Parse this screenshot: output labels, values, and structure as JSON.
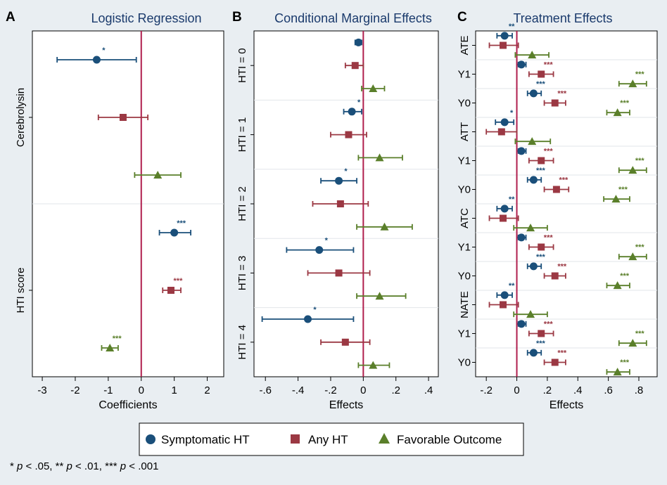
{
  "colors": {
    "symptomatic": "#1a4f7a",
    "any_ht": "#9b3843",
    "favorable": "#5a7f2a",
    "reference_line": "#b01e4d",
    "title": "#1a3a6c"
  },
  "legend": {
    "items": [
      {
        "label": "Symptomatic HT",
        "marker": "circle",
        "color": "#1a4f7a"
      },
      {
        "label": "Any HT",
        "marker": "square",
        "color": "#9b3843"
      },
      {
        "label": "Favorable Outcome",
        "marker": "triangle",
        "color": "#5a7f2a"
      }
    ]
  },
  "footnote": {
    "part1": "* ",
    "p1": "p",
    "part2": " < .05, ** ",
    "p2": "p",
    "part3": " < .01, *** ",
    "p3": "p",
    "part4": " < .001"
  },
  "chart_data": [
    {
      "type": "scatter",
      "letter": "A",
      "title": "Logistic Regression",
      "xlabel": "Coefficients",
      "ylabel": "",
      "xlim": [
        -3.3,
        2.5
      ],
      "xticks": [
        -3,
        -2,
        -1,
        0,
        1,
        2
      ],
      "xtick_labels": [
        "-3",
        "-2",
        "-1",
        "0",
        "1",
        "2"
      ],
      "reference_x": 0,
      "groups": [
        {
          "label": "Cerebrolysin",
          "sub": [
            ""
          ]
        },
        {
          "label": "HTI score",
          "sub": [
            ""
          ]
        }
      ],
      "series": [
        {
          "name": "Symptomatic HT",
          "points": [
            {
              "group": 0,
              "sub": 0,
              "value": -1.35,
              "lo": -2.55,
              "hi": -0.15,
              "stars": "*"
            },
            {
              "group": 1,
              "sub": 0,
              "value": 1.0,
              "lo": 0.55,
              "hi": 1.5,
              "stars": "***"
            }
          ]
        },
        {
          "name": "Any HT",
          "points": [
            {
              "group": 0,
              "sub": 0,
              "value": -0.55,
              "lo": -1.3,
              "hi": 0.2,
              "stars": ""
            },
            {
              "group": 1,
              "sub": 0,
              "value": 0.9,
              "lo": 0.65,
              "hi": 1.2,
              "stars": "***"
            }
          ]
        },
        {
          "name": "Favorable Outcome",
          "points": [
            {
              "group": 0,
              "sub": 0,
              "value": 0.5,
              "lo": -0.2,
              "hi": 1.2,
              "stars": ""
            },
            {
              "group": 1,
              "sub": 0,
              "value": -0.95,
              "lo": -1.2,
              "hi": -0.7,
              "stars": "***"
            }
          ]
        }
      ]
    },
    {
      "type": "scatter",
      "letter": "B",
      "title": "Conditional Marginal Effects",
      "xlabel": "Effects",
      "ylabel": "",
      "xlim": [
        -0.67,
        0.46
      ],
      "xticks": [
        -0.6,
        -0.4,
        -0.2,
        0,
        0.2,
        0.4
      ],
      "xtick_labels": [
        "-.6",
        "-.4",
        "-.2",
        "0",
        ".2",
        ".4"
      ],
      "reference_x": 0,
      "groups": [
        {
          "label": "HTI = 0",
          "sub": [
            ""
          ]
        },
        {
          "label": "HTI = 1",
          "sub": [
            ""
          ]
        },
        {
          "label": "HTI = 2",
          "sub": [
            ""
          ]
        },
        {
          "label": "HTI = 3",
          "sub": [
            ""
          ]
        },
        {
          "label": "HTI = 4",
          "sub": [
            ""
          ]
        }
      ],
      "series": [
        {
          "name": "Symptomatic HT",
          "points": [
            {
              "group": 0,
              "sub": 0,
              "value": -0.03,
              "lo": -0.05,
              "hi": -0.01,
              "stars": ""
            },
            {
              "group": 1,
              "sub": 0,
              "value": -0.07,
              "lo": -0.12,
              "hi": -0.01,
              "stars": "*"
            },
            {
              "group": 2,
              "sub": 0,
              "value": -0.15,
              "lo": -0.26,
              "hi": -0.04,
              "stars": "*"
            },
            {
              "group": 3,
              "sub": 0,
              "value": -0.27,
              "lo": -0.47,
              "hi": -0.06,
              "stars": "*"
            },
            {
              "group": 4,
              "sub": 0,
              "value": -0.34,
              "lo": -0.62,
              "hi": -0.06,
              "stars": "*"
            }
          ]
        },
        {
          "name": "Any HT",
          "points": [
            {
              "group": 0,
              "sub": 0,
              "value": -0.05,
              "lo": -0.11,
              "hi": 0.0,
              "stars": ""
            },
            {
              "group": 1,
              "sub": 0,
              "value": -0.09,
              "lo": -0.2,
              "hi": 0.02,
              "stars": ""
            },
            {
              "group": 2,
              "sub": 0,
              "value": -0.14,
              "lo": -0.31,
              "hi": 0.03,
              "stars": ""
            },
            {
              "group": 3,
              "sub": 0,
              "value": -0.15,
              "lo": -0.34,
              "hi": 0.04,
              "stars": ""
            },
            {
              "group": 4,
              "sub": 0,
              "value": -0.11,
              "lo": -0.26,
              "hi": 0.04,
              "stars": ""
            }
          ]
        },
        {
          "name": "Favorable Outcome",
          "points": [
            {
              "group": 0,
              "sub": 0,
              "value": 0.06,
              "lo": -0.01,
              "hi": 0.13,
              "stars": ""
            },
            {
              "group": 1,
              "sub": 0,
              "value": 0.1,
              "lo": -0.03,
              "hi": 0.24,
              "stars": ""
            },
            {
              "group": 2,
              "sub": 0,
              "value": 0.13,
              "lo": -0.04,
              "hi": 0.3,
              "stars": ""
            },
            {
              "group": 3,
              "sub": 0,
              "value": 0.1,
              "lo": -0.04,
              "hi": 0.26,
              "stars": ""
            },
            {
              "group": 4,
              "sub": 0,
              "value": 0.06,
              "lo": -0.03,
              "hi": 0.16,
              "stars": ""
            }
          ]
        }
      ]
    },
    {
      "type": "scatter",
      "letter": "C",
      "title": "Treatment Effects",
      "xlabel": "Effects",
      "ylabel": "",
      "xlim": [
        -0.27,
        0.92
      ],
      "xticks": [
        -0.2,
        0,
        0.2,
        0.4,
        0.6,
        0.8
      ],
      "xtick_labels": [
        "-.2",
        "0",
        ".2",
        ".4",
        ".6",
        ".8"
      ],
      "reference_x": 0,
      "groups": [
        {
          "label": "ATE",
          "sub": [
            "",
            "Y1",
            "Y0"
          ]
        },
        {
          "label": "ATT",
          "sub": [
            "",
            "Y1",
            "Y0"
          ]
        },
        {
          "label": "ATC",
          "sub": [
            "",
            "Y1",
            "Y0"
          ]
        },
        {
          "label": "NATE",
          "sub": [
            "",
            "Y1",
            "Y0"
          ]
        }
      ],
      "series": [
        {
          "name": "Symptomatic HT",
          "points": [
            {
              "group": 0,
              "sub": 0,
              "value": -0.08,
              "lo": -0.13,
              "hi": -0.03,
              "stars": "**"
            },
            {
              "group": 0,
              "sub": 1,
              "value": 0.03,
              "lo": 0.01,
              "hi": 0.06,
              "stars": ""
            },
            {
              "group": 0,
              "sub": 2,
              "value": 0.11,
              "lo": 0.07,
              "hi": 0.16,
              "stars": "***"
            },
            {
              "group": 1,
              "sub": 0,
              "value": -0.08,
              "lo": -0.14,
              "hi": -0.02,
              "stars": "*"
            },
            {
              "group": 1,
              "sub": 1,
              "value": 0.03,
              "lo": 0.01,
              "hi": 0.06,
              "stars": ""
            },
            {
              "group": 1,
              "sub": 2,
              "value": 0.11,
              "lo": 0.07,
              "hi": 0.16,
              "stars": "***"
            },
            {
              "group": 2,
              "sub": 0,
              "value": -0.08,
              "lo": -0.13,
              "hi": -0.03,
              "stars": "**"
            },
            {
              "group": 2,
              "sub": 1,
              "value": 0.03,
              "lo": 0.01,
              "hi": 0.06,
              "stars": ""
            },
            {
              "group": 2,
              "sub": 2,
              "value": 0.11,
              "lo": 0.07,
              "hi": 0.16,
              "stars": "***"
            },
            {
              "group": 3,
              "sub": 0,
              "value": -0.08,
              "lo": -0.13,
              "hi": -0.03,
              "stars": "**"
            },
            {
              "group": 3,
              "sub": 1,
              "value": 0.03,
              "lo": 0.01,
              "hi": 0.06,
              "stars": ""
            },
            {
              "group": 3,
              "sub": 2,
              "value": 0.11,
              "lo": 0.07,
              "hi": 0.16,
              "stars": "***"
            }
          ]
        },
        {
          "name": "Any HT",
          "points": [
            {
              "group": 0,
              "sub": 0,
              "value": -0.09,
              "lo": -0.18,
              "hi": 0.01,
              "stars": ""
            },
            {
              "group": 0,
              "sub": 1,
              "value": 0.16,
              "lo": 0.08,
              "hi": 0.24,
              "stars": "***"
            },
            {
              "group": 0,
              "sub": 2,
              "value": 0.25,
              "lo": 0.18,
              "hi": 0.32,
              "stars": "***"
            },
            {
              "group": 1,
              "sub": 0,
              "value": -0.1,
              "lo": -0.2,
              "hi": 0.0,
              "stars": ""
            },
            {
              "group": 1,
              "sub": 1,
              "value": 0.16,
              "lo": 0.08,
              "hi": 0.24,
              "stars": "***"
            },
            {
              "group": 1,
              "sub": 2,
              "value": 0.26,
              "lo": 0.18,
              "hi": 0.34,
              "stars": "***"
            },
            {
              "group": 2,
              "sub": 0,
              "value": -0.09,
              "lo": -0.18,
              "hi": 0.01,
              "stars": ""
            },
            {
              "group": 2,
              "sub": 1,
              "value": 0.16,
              "lo": 0.08,
              "hi": 0.24,
              "stars": "***"
            },
            {
              "group": 2,
              "sub": 2,
              "value": 0.25,
              "lo": 0.18,
              "hi": 0.32,
              "stars": "***"
            },
            {
              "group": 3,
              "sub": 0,
              "value": -0.09,
              "lo": -0.18,
              "hi": 0.01,
              "stars": ""
            },
            {
              "group": 3,
              "sub": 1,
              "value": 0.16,
              "lo": 0.08,
              "hi": 0.24,
              "stars": "***"
            },
            {
              "group": 3,
              "sub": 2,
              "value": 0.25,
              "lo": 0.18,
              "hi": 0.32,
              "stars": "***"
            }
          ]
        },
        {
          "name": "Favorable Outcome",
          "points": [
            {
              "group": 0,
              "sub": 0,
              "value": 0.1,
              "lo": -0.01,
              "hi": 0.21,
              "stars": ""
            },
            {
              "group": 0,
              "sub": 1,
              "value": 0.76,
              "lo": 0.67,
              "hi": 0.85,
              "stars": "***"
            },
            {
              "group": 0,
              "sub": 2,
              "value": 0.66,
              "lo": 0.59,
              "hi": 0.74,
              "stars": "***"
            },
            {
              "group": 1,
              "sub": 0,
              "value": 0.1,
              "lo": -0.01,
              "hi": 0.22,
              "stars": ""
            },
            {
              "group": 1,
              "sub": 1,
              "value": 0.76,
              "lo": 0.67,
              "hi": 0.85,
              "stars": "***"
            },
            {
              "group": 1,
              "sub": 2,
              "value": 0.65,
              "lo": 0.57,
              "hi": 0.74,
              "stars": "***"
            },
            {
              "group": 2,
              "sub": 0,
              "value": 0.09,
              "lo": -0.02,
              "hi": 0.2,
              "stars": ""
            },
            {
              "group": 2,
              "sub": 1,
              "value": 0.76,
              "lo": 0.67,
              "hi": 0.85,
              "stars": "***"
            },
            {
              "group": 2,
              "sub": 2,
              "value": 0.66,
              "lo": 0.59,
              "hi": 0.74,
              "stars": "***"
            },
            {
              "group": 3,
              "sub": 0,
              "value": 0.09,
              "lo": -0.02,
              "hi": 0.2,
              "stars": ""
            },
            {
              "group": 3,
              "sub": 1,
              "value": 0.76,
              "lo": 0.67,
              "hi": 0.85,
              "stars": "***"
            },
            {
              "group": 3,
              "sub": 2,
              "value": 0.66,
              "lo": 0.59,
              "hi": 0.74,
              "stars": "***"
            }
          ]
        }
      ]
    }
  ]
}
